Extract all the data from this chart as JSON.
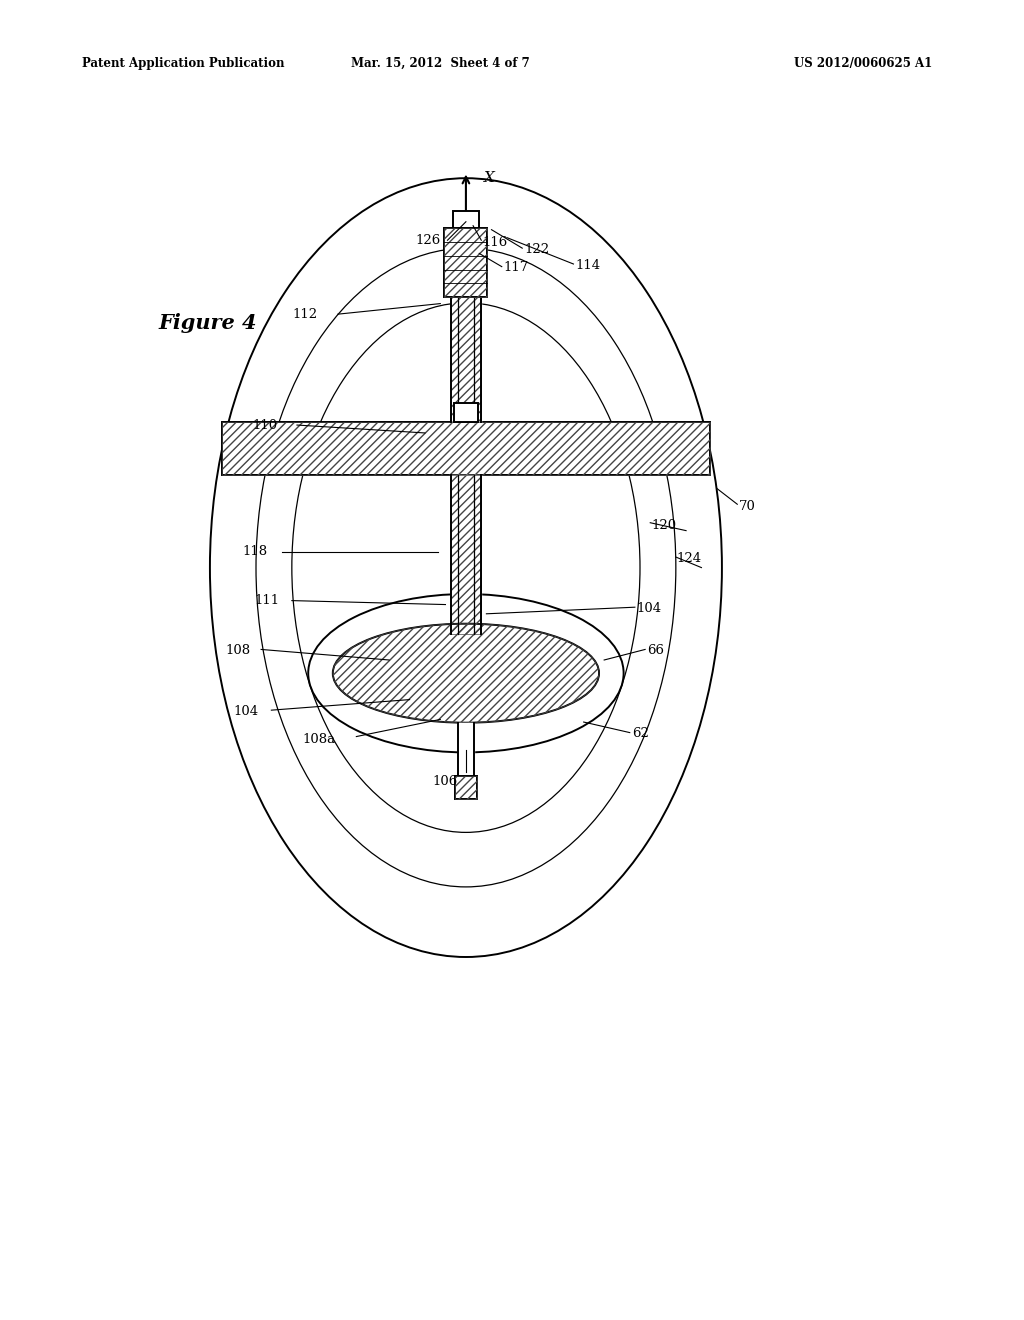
{
  "bg_color": "#ffffff",
  "line_color": "#000000",
  "header_left": "Patent Application Publication",
  "header_mid": "Mar. 15, 2012  Sheet 4 of 7",
  "header_right": "US 2012/0060625 A1",
  "figure_label": "Figure 4",
  "axis_label": "X"
}
